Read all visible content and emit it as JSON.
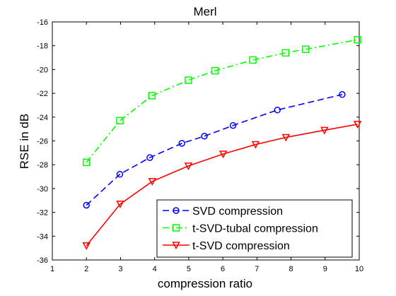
{
  "chart_data": {
    "type": "line",
    "title": "Merl",
    "xlabel": "compression ratio",
    "ylabel": "RSE in dB",
    "xlim": [
      1,
      10
    ],
    "ylim": [
      -36,
      -16
    ],
    "xticks": [
      1,
      2,
      3,
      4,
      5,
      6,
      7,
      8,
      9,
      10
    ],
    "yticks": [
      -36,
      -34,
      -32,
      -30,
      -28,
      -26,
      -24,
      -22,
      -20,
      -18,
      -16
    ],
    "grid": false,
    "legend_position": "bottom-right",
    "series": [
      {
        "name": "SVD compression",
        "color": "#0000ff",
        "line_style": "dashed",
        "marker": "circle",
        "x": [
          2.0,
          2.98,
          3.86,
          4.8,
          5.46,
          6.3,
          7.6,
          9.5
        ],
        "y": [
          -31.4,
          -28.8,
          -27.4,
          -26.2,
          -25.6,
          -24.7,
          -23.4,
          -22.1
        ]
      },
      {
        "name": "t-SVD-tubal compression",
        "color": "#00ff00",
        "line_style": "dashdot",
        "marker": "square",
        "x": [
          2.0,
          2.98,
          3.92,
          4.99,
          5.77,
          6.88,
          7.84,
          8.43,
          9.95
        ],
        "y": [
          -27.8,
          -24.3,
          -22.2,
          -20.9,
          -20.1,
          -19.2,
          -18.6,
          -18.3,
          -17.5
        ]
      },
      {
        "name": "t-SVD compression",
        "color": "#ff0000",
        "line_style": "solid",
        "marker": "triangle-down",
        "x": [
          2.0,
          2.99,
          3.93,
          4.99,
          6.01,
          6.96,
          7.85,
          8.98,
          9.95
        ],
        "y": [
          -34.8,
          -31.3,
          -29.4,
          -28.1,
          -27.1,
          -26.3,
          -25.7,
          -25.1,
          -24.6
        ]
      }
    ]
  }
}
